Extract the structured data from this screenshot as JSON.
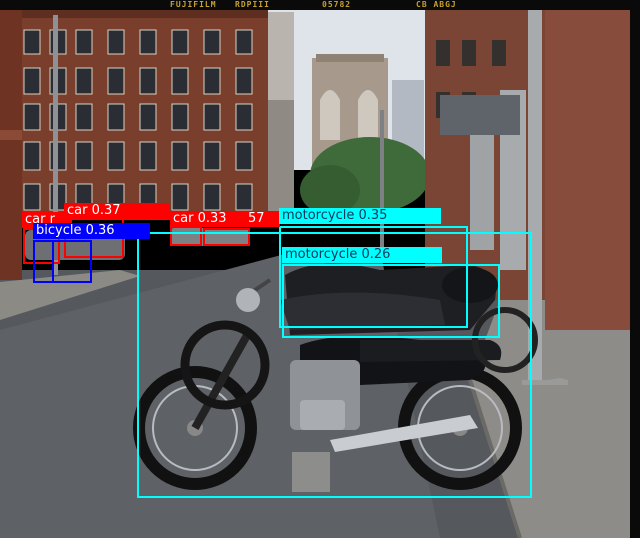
{
  "film_edge": {
    "brand": "FUJIFILM",
    "stock": "RDPIII",
    "frame": "05782",
    "code": "CB ABGJ"
  },
  "colors": {
    "car": "#ff0000",
    "bicycle": "#0000ff",
    "motorcycle": "#00ffff"
  },
  "detections": [
    {
      "id": "car-1",
      "class": "car",
      "label": "car 0.37"
    },
    {
      "id": "car-2",
      "class": "car",
      "label": "car r"
    },
    {
      "id": "car-3",
      "class": "car",
      "label": "car 0.33"
    },
    {
      "id": "car-4",
      "class": "car",
      "label": "57"
    },
    {
      "id": "bicycle-1",
      "class": "bicycle",
      "label": "bicycle 0.36"
    },
    {
      "id": "motorcycle-1",
      "class": "motorcycle",
      "label": "motorcycle 0.35"
    },
    {
      "id": "motorcycle-2",
      "class": "motorcycle",
      "label": "motorcycle 0.26"
    }
  ]
}
